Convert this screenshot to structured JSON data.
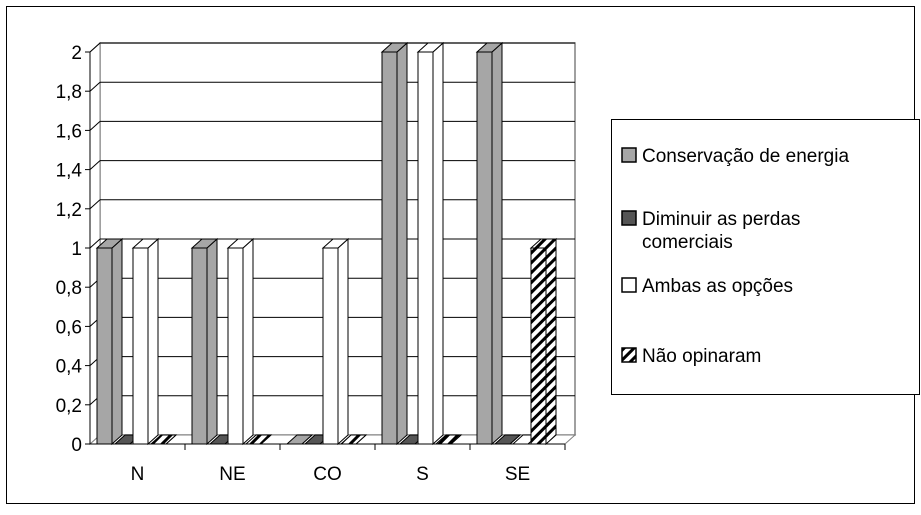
{
  "chart_data": {
    "type": "bar",
    "title": "",
    "xlabel": "",
    "ylabel": "",
    "categories": [
      "N",
      "NE",
      "CO",
      "S",
      "SE"
    ],
    "ylim": [
      0,
      2
    ],
    "yticks": [
      "0",
      "0,2",
      "0,4",
      "0,6",
      "0,8",
      "1",
      "1,2",
      "1,4",
      "1,6",
      "1,8",
      "2"
    ],
    "grid": true,
    "legend_position": "right",
    "series": [
      {
        "name": "Conservação de energia",
        "values": [
          1,
          1,
          0,
          2,
          2
        ],
        "color": "#a6a6a6",
        "pattern": "solid"
      },
      {
        "name": "Diminuir as perdas comerciais",
        "values": [
          0,
          0,
          0,
          0,
          0
        ],
        "color": "#555555",
        "pattern": "solid"
      },
      {
        "name": "Ambas as opções",
        "values": [
          1,
          1,
          1,
          2,
          0
        ],
        "color": "#ffffff",
        "pattern": "solid"
      },
      {
        "name": "Não opinaram",
        "values": [
          0,
          0,
          0,
          0,
          1
        ],
        "color": "#ffffff",
        "pattern": "diagonal-hatch"
      }
    ]
  }
}
